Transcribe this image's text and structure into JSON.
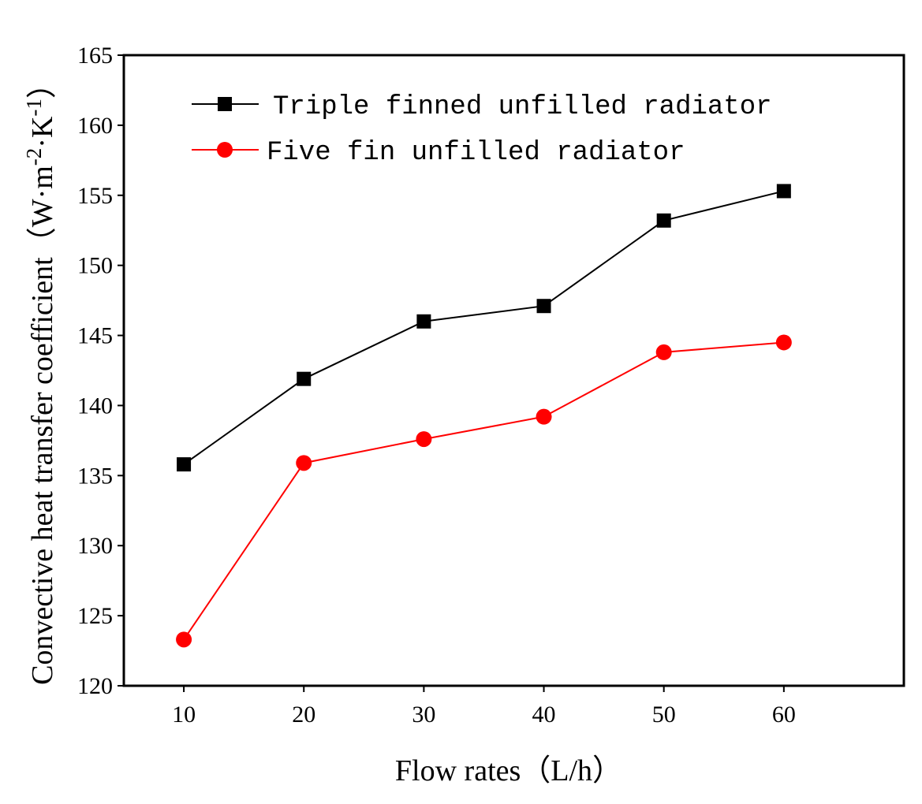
{
  "chart_data": {
    "type": "line",
    "title": "",
    "xlabel": "Flow rates（L/h）",
    "ylabel": "Convective heat transfer coefficient（W·m-2·K-1）",
    "ylabel_parts": {
      "main": "Convective heat transfer coefficient（W·m",
      "sup1": "-2",
      "mid": "·K",
      "sup2": "-1",
      "end": "）"
    },
    "x": [
      10,
      20,
      30,
      40,
      50,
      60
    ],
    "xlim": [
      5,
      70
    ],
    "ylim": [
      120,
      165
    ],
    "yticks": [
      120,
      125,
      130,
      135,
      140,
      145,
      150,
      155,
      160,
      165
    ],
    "grid": false,
    "legend_position": "top-left",
    "series": [
      {
        "name": "Triple finned unfilled radiator",
        "color": "#000000",
        "marker": "square",
        "values": [
          135.8,
          141.9,
          146.0,
          147.1,
          153.2,
          155.3
        ]
      },
      {
        "name": "Five fin unfilled radiator",
        "color": "#ff0000",
        "marker": "circle",
        "values": [
          123.3,
          135.9,
          137.6,
          139.2,
          143.8,
          144.5
        ]
      }
    ]
  }
}
